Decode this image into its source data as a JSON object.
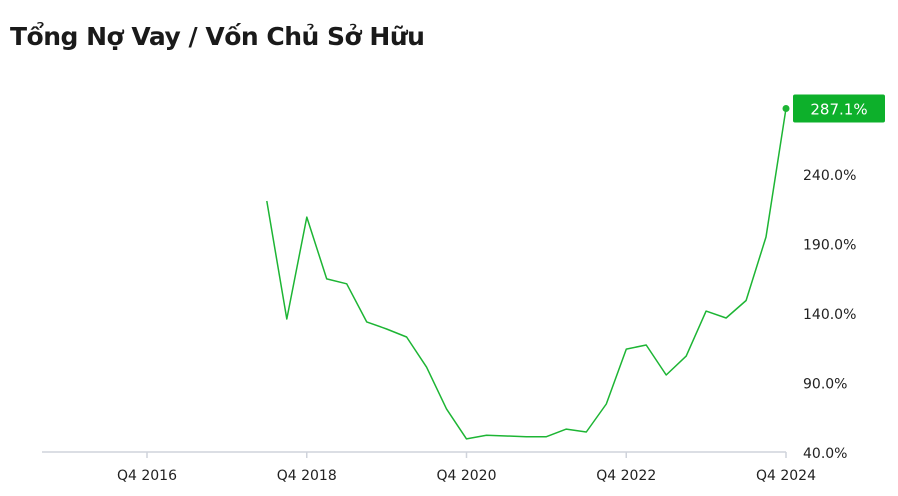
{
  "chart_data": {
    "type": "line",
    "title": "Tổng Nợ Vay / Vốn Chủ Sở Hữu",
    "xlabel": "",
    "ylabel": "",
    "x_tick_labels": [
      "Q4 2016",
      "Q4 2018",
      "Q4 2020",
      "Q4 2022",
      "Q4 2024"
    ],
    "y_tick_labels": [
      "40.0%",
      "90.0%",
      "140.0%",
      "190.0%",
      "240.0%"
    ],
    "y_ticks": [
      40,
      90,
      140,
      190,
      240
    ],
    "ylim": [
      40,
      290
    ],
    "x_range": [
      "Q2 2016",
      "Q4 2024"
    ],
    "grid": false,
    "line_color": "#1db534",
    "badge_color": "#0db02b",
    "last_value_label": "287.1%",
    "x": [
      "Q2 2018",
      "Q3 2018",
      "Q4 2018",
      "Q1 2019",
      "Q2 2019",
      "Q3 2019",
      "Q4 2019",
      "Q1 2020",
      "Q2 2020",
      "Q3 2020",
      "Q4 2020",
      "Q1 2021",
      "Q2 2021",
      "Q3 2021",
      "Q4 2021",
      "Q1 2022",
      "Q2 2022",
      "Q3 2022",
      "Q4 2022",
      "Q1 2023",
      "Q2 2023",
      "Q3 2023",
      "Q4 2023",
      "Q1 2024",
      "Q2 2024",
      "Q3 2024",
      "Q4 2024"
    ],
    "values": [
      220.6,
      135.7,
      209,
      164.5,
      161,
      133.6,
      128.5,
      122.7,
      101,
      71,
      49.4,
      52,
      51.5,
      51,
      51,
      56.5,
      54.4,
      74.5,
      114,
      117,
      95.4,
      109,
      141.4,
      136.4,
      149,
      194.7,
      287.1
    ]
  }
}
